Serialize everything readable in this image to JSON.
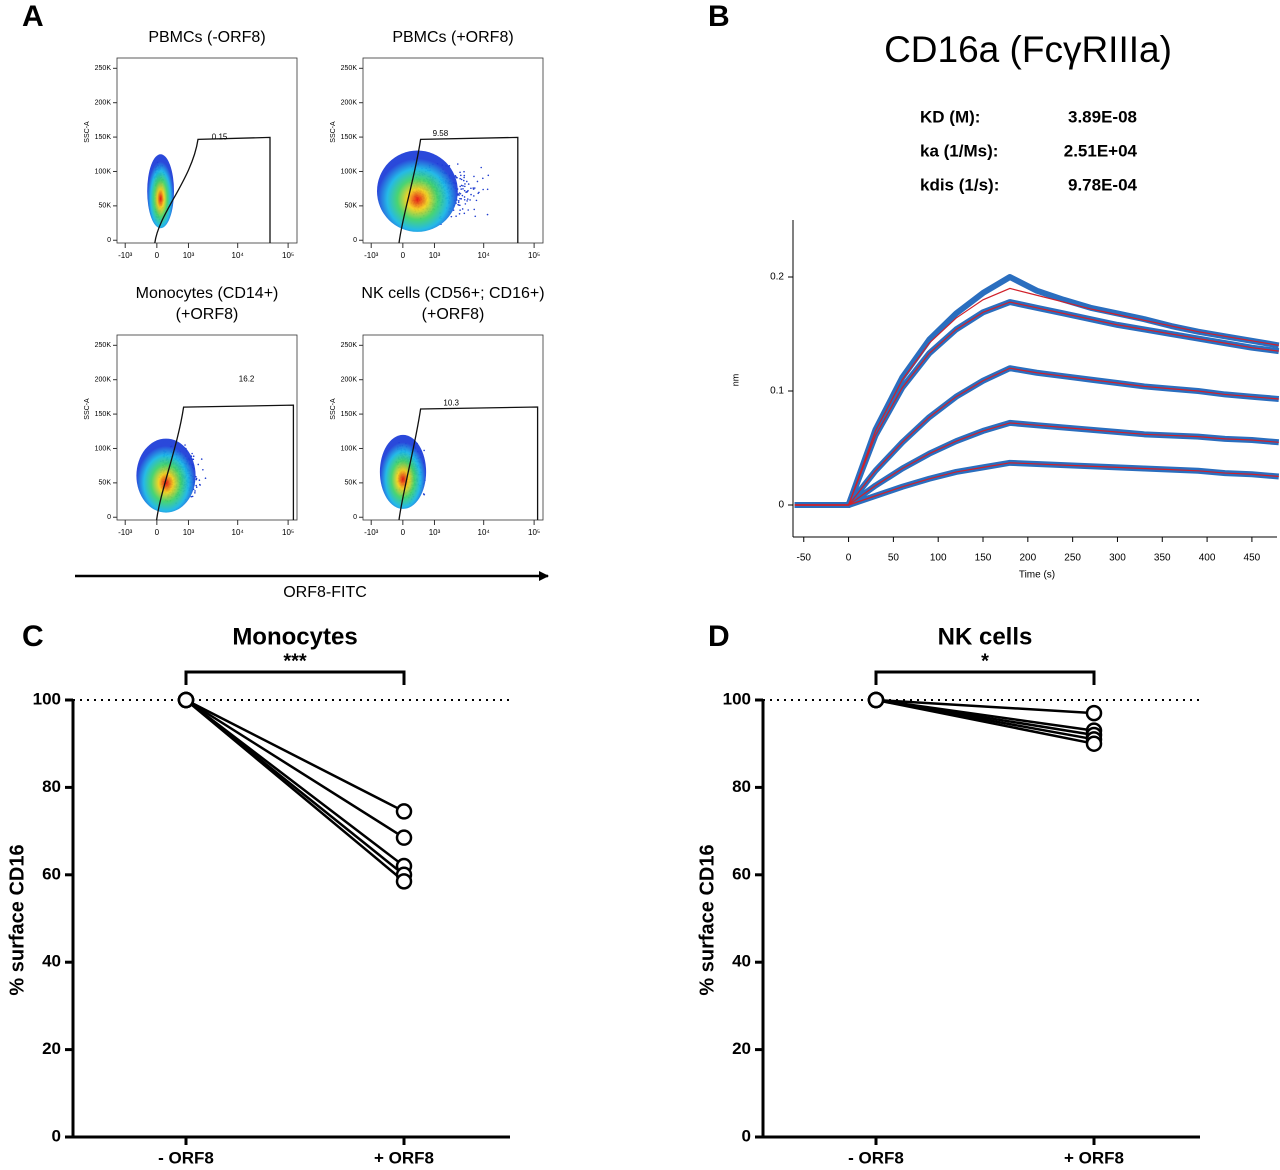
{
  "figure": {
    "panel_labels": [
      "A",
      "B",
      "C",
      "D"
    ],
    "flow_x_label": "ORF8-FITC"
  },
  "chart_data": [
    {
      "type": "flow",
      "title": [
        "PBMCs (-ORF8)"
      ],
      "y_label": "SSC-A",
      "gate_percent": 0.15,
      "xlim": [
        -1500,
        150000
      ],
      "xticks": [
        {
          "value": -1000,
          "label": "-10³"
        },
        0,
        {
          "value": 1000,
          "label": "10³"
        },
        {
          "value": 10000,
          "label": "10⁴"
        },
        {
          "value": 100000,
          "label": "10⁵"
        }
      ],
      "ylim": [
        -4000,
        265000
      ],
      "yticks": [
        0,
        {
          "value": 50000,
          "label": "50K"
        },
        {
          "value": 100000,
          "label": "100K"
        },
        {
          "value": 150000,
          "label": "150K"
        },
        {
          "value": 200000,
          "label": "200K"
        },
        {
          "value": 250000,
          "label": "250K"
        }
      ]
    },
    {
      "type": "flow",
      "title": [
        "PBMCs (+ORF8)"
      ],
      "y_label": "SSC-A",
      "gate_percent": 9.58,
      "xlim": [
        -1500,
        150000
      ],
      "xticks": [
        {
          "value": -1000,
          "label": "-10³"
        },
        0,
        {
          "value": 1000,
          "label": "10³"
        },
        {
          "value": 10000,
          "label": "10⁴"
        },
        {
          "value": 100000,
          "label": "10⁵"
        }
      ],
      "ylim": [
        -4000,
        265000
      ],
      "yticks": [
        0,
        {
          "value": 50000,
          "label": "50K"
        },
        {
          "value": 100000,
          "label": "100K"
        },
        {
          "value": 150000,
          "label": "150K"
        },
        {
          "value": 200000,
          "label": "200K"
        },
        {
          "value": 250000,
          "label": "250K"
        }
      ]
    },
    {
      "type": "flow",
      "title": [
        "Monocytes (CD14+)",
        "(+ORF8)"
      ],
      "y_label": "SSC-A",
      "gate_percent": 16.2,
      "xlim": [
        -1500,
        150000
      ],
      "xticks": [
        {
          "value": -1000,
          "label": "-10³"
        },
        0,
        {
          "value": 1000,
          "label": "10³"
        },
        {
          "value": 10000,
          "label": "10⁴"
        },
        {
          "value": 100000,
          "label": "10⁵"
        }
      ],
      "ylim": [
        -4000,
        265000
      ],
      "yticks": [
        0,
        {
          "value": 50000,
          "label": "50K"
        },
        {
          "value": 100000,
          "label": "100K"
        },
        {
          "value": 150000,
          "label": "150K"
        },
        {
          "value": 200000,
          "label": "200K"
        },
        {
          "value": 250000,
          "label": "250K"
        }
      ]
    },
    {
      "type": "flow",
      "title": [
        "NK cells (CD56+; CD16+)",
        "(+ORF8)"
      ],
      "y_label": "SSC-A",
      "gate_percent": 10.3,
      "xlim": [
        -1500,
        150000
      ],
      "xticks": [
        {
          "value": -1000,
          "label": "-10³"
        },
        0,
        {
          "value": 1000,
          "label": "10³"
        },
        {
          "value": 10000,
          "label": "10⁴"
        },
        {
          "value": 100000,
          "label": "10⁵"
        }
      ],
      "ylim": [
        -4000,
        265000
      ],
      "yticks": [
        0,
        {
          "value": 50000,
          "label": "50K"
        },
        {
          "value": 100000,
          "label": "100K"
        },
        {
          "value": 150000,
          "label": "150K"
        },
        {
          "value": 200000,
          "label": "200K"
        },
        {
          "value": 250000,
          "label": "250K"
        }
      ]
    },
    {
      "type": "line",
      "title": "CD16a (FcγRIIIa)",
      "kinetics": [
        {
          "label": "KD (M):",
          "value": 3.89e-08,
          "value_label": "3.89E-08"
        },
        {
          "label": "ka (1/Ms):",
          "value": 25100,
          "value_label": "2.51E+04"
        },
        {
          "label": "kdis (1/s):",
          "value": 0.000978,
          "value_label": "9.78E-04"
        }
      ],
      "x_label": "Time (s)",
      "y_label": "nm",
      "xlim": [
        -62,
        478
      ],
      "xticks": [
        -50,
        0,
        50,
        100,
        150,
        200,
        250,
        300,
        350,
        400,
        450
      ],
      "ylim": [
        -0.025,
        0.25
      ],
      "yticks": [
        0,
        0.1,
        0.2
      ],
      "x": [
        -60,
        -30,
        0,
        30,
        60,
        90,
        120,
        150,
        180,
        210,
        240,
        270,
        300,
        330,
        360,
        390,
        420,
        450,
        480
      ],
      "series": [
        {
          "color": "#2a6ebf",
          "values": [
            0,
            0,
            0,
            0.066,
            0.112,
            0.145,
            0.168,
            0.186,
            0.2,
            0.188,
            0.18,
            0.173,
            0.168,
            0.163,
            0.157,
            0.152,
            0.148,
            0.144,
            0.14
          ]
        },
        {
          "color": "#2a6ebf",
          "values": [
            0,
            0,
            0,
            0.061,
            0.103,
            0.133,
            0.154,
            0.169,
            0.178,
            0.173,
            0.168,
            0.163,
            0.158,
            0.154,
            0.15,
            0.146,
            0.142,
            0.138,
            0.135
          ]
        },
        {
          "color": "#2a6ebf",
          "values": [
            0,
            0,
            0,
            0.03,
            0.055,
            0.077,
            0.095,
            0.109,
            0.12,
            0.116,
            0.113,
            0.11,
            0.107,
            0.104,
            0.102,
            0.1,
            0.097,
            0.095,
            0.093
          ]
        },
        {
          "color": "#2a6ebf",
          "values": [
            0,
            0,
            0,
            0.017,
            0.032,
            0.045,
            0.056,
            0.065,
            0.072,
            0.07,
            0.068,
            0.066,
            0.064,
            0.062,
            0.061,
            0.06,
            0.058,
            0.057,
            0.055
          ]
        },
        {
          "color": "#2a6ebf",
          "values": [
            0,
            0,
            0,
            0.008,
            0.016,
            0.023,
            0.029,
            0.033,
            0.037,
            0.036,
            0.035,
            0.034,
            0.033,
            0.032,
            0.031,
            0.03,
            0.028,
            0.027,
            0.025
          ]
        }
      ],
      "fits": [
        {
          "color": "#d0202a",
          "values": [
            0,
            0,
            0,
            0.065,
            0.11,
            0.142,
            0.164,
            0.18,
            0.19,
            0.184,
            0.178,
            0.172,
            0.167,
            0.162,
            0.157,
            0.152,
            0.148,
            0.144,
            0.14
          ]
        },
        {
          "color": "#d0202a",
          "values": [
            0,
            0,
            0,
            0.061,
            0.103,
            0.133,
            0.154,
            0.169,
            0.178,
            0.173,
            0.168,
            0.163,
            0.158,
            0.154,
            0.15,
            0.146,
            0.142,
            0.138,
            0.135
          ]
        },
        {
          "color": "#d0202a",
          "values": [
            0,
            0,
            0,
            0.03,
            0.055,
            0.077,
            0.095,
            0.109,
            0.12,
            0.116,
            0.113,
            0.11,
            0.107,
            0.104,
            0.102,
            0.1,
            0.097,
            0.095,
            0.093
          ]
        },
        {
          "color": "#d0202a",
          "values": [
            0,
            0,
            0,
            0.017,
            0.032,
            0.045,
            0.056,
            0.065,
            0.072,
            0.07,
            0.068,
            0.066,
            0.064,
            0.062,
            0.061,
            0.06,
            0.058,
            0.057,
            0.055
          ]
        },
        {
          "color": "#d0202a",
          "values": [
            0,
            0,
            0,
            0.008,
            0.016,
            0.023,
            0.029,
            0.033,
            0.037,
            0.036,
            0.035,
            0.034,
            0.033,
            0.032,
            0.031,
            0.03,
            0.028,
            0.027,
            0.025
          ]
        }
      ]
    },
    {
      "type": "paired",
      "title": "Monocytes",
      "significance": "***",
      "categories": [
        "- ORF8",
        "+ ORF8"
      ],
      "y_label": "% surface CD16",
      "reference_line": 100,
      "ylim": [
        0,
        100
      ],
      "yticks": [
        0,
        20,
        40,
        60,
        80,
        100
      ],
      "line_color": "#000000",
      "marker_color": "#ffffff",
      "series": [
        {
          "values": [
            100,
            74.5
          ]
        },
        {
          "values": [
            100,
            68.5
          ]
        },
        {
          "values": [
            100,
            62
          ]
        },
        {
          "values": [
            100,
            60
          ]
        },
        {
          "values": [
            100,
            58.5
          ]
        }
      ]
    },
    {
      "type": "paired",
      "title": "NK cells",
      "significance": "*",
      "categories": [
        "- ORF8",
        "+ ORF8"
      ],
      "y_label": "% surface CD16",
      "reference_line": 100,
      "ylim": [
        0,
        100
      ],
      "yticks": [
        0,
        20,
        40,
        60,
        80,
        100
      ],
      "line_color": "#000000",
      "marker_color": "#ffffff",
      "series": [
        {
          "values": [
            100,
            97
          ]
        },
        {
          "values": [
            100,
            93
          ]
        },
        {
          "values": [
            100,
            92
          ]
        },
        {
          "values": [
            100,
            91
          ]
        },
        {
          "values": [
            100,
            90
          ]
        }
      ]
    }
  ]
}
